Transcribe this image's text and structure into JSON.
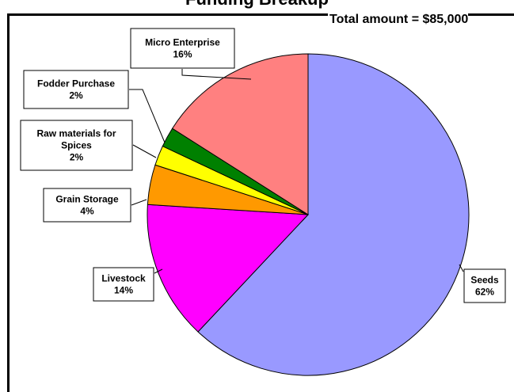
{
  "chart_data": {
    "type": "pie",
    "title": "Funding Breakup",
    "annotation": "Total amount = $85,000",
    "slices": [
      {
        "label": "Seeds",
        "value": 62,
        "display": "62%",
        "color": "#9999ff"
      },
      {
        "label": "Livestock",
        "value": 14,
        "display": "14%",
        "color": "#ff00ff"
      },
      {
        "label": "Grain Storage",
        "value": 4,
        "display": "4%",
        "color": "#ff9900"
      },
      {
        "label": "Raw materials for Spices",
        "value": 2,
        "display": "2%",
        "color": "#ffff00"
      },
      {
        "label": "Fodder Purchase",
        "value": 2,
        "display": "2%",
        "color": "#008000"
      },
      {
        "label": "Micro Enterprise",
        "value": 16,
        "display": "16%",
        "color": "#ff8080"
      }
    ]
  }
}
